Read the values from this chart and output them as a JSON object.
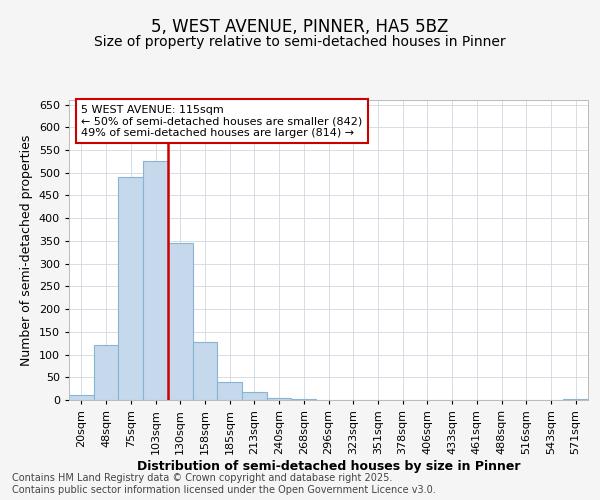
{
  "title": "5, WEST AVENUE, PINNER, HA5 5BZ",
  "subtitle": "Size of property relative to semi-detached houses in Pinner",
  "xlabel": "Distribution of semi-detached houses by size in Pinner",
  "ylabel": "Number of semi-detached properties",
  "categories": [
    "20sqm",
    "48sqm",
    "75sqm",
    "103sqm",
    "130sqm",
    "158sqm",
    "185sqm",
    "213sqm",
    "240sqm",
    "268sqm",
    "296sqm",
    "323sqm",
    "351sqm",
    "378sqm",
    "406sqm",
    "433sqm",
    "461sqm",
    "488sqm",
    "516sqm",
    "543sqm",
    "571sqm"
  ],
  "values": [
    10,
    120,
    490,
    525,
    345,
    128,
    40,
    18,
    5,
    3,
    1,
    0,
    0,
    0,
    0,
    0,
    0,
    0,
    0,
    0,
    2
  ],
  "bar_color": "#c6d9ec",
  "bar_edge_color": "#8ab4d4",
  "vline_x_index": 3,
  "vline_color": "#cc0000",
  "annotation_line1": "5 WEST AVENUE: 115sqm",
  "annotation_line2": "← 50% of semi-detached houses are smaller (842)",
  "annotation_line3": "49% of semi-detached houses are larger (814) →",
  "annotation_box_color": "#cc0000",
  "ylim": [
    0,
    660
  ],
  "yticks": [
    0,
    50,
    100,
    150,
    200,
    250,
    300,
    350,
    400,
    450,
    500,
    550,
    600,
    650
  ],
  "background_color": "#f5f5f5",
  "plot_background": "#ffffff",
  "footer_line1": "Contains HM Land Registry data © Crown copyright and database right 2025.",
  "footer_line2": "Contains public sector information licensed under the Open Government Licence v3.0.",
  "title_fontsize": 12,
  "subtitle_fontsize": 10,
  "axis_label_fontsize": 9,
  "tick_fontsize": 8,
  "annotation_fontsize": 8,
  "footer_fontsize": 7
}
